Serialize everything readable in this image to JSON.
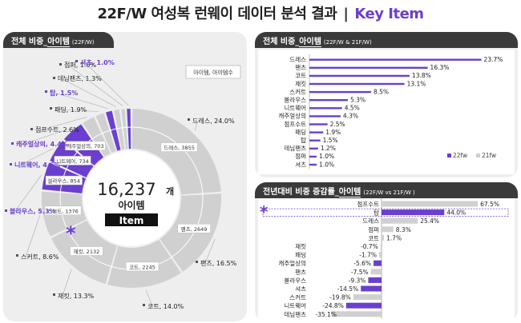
{
  "header": {
    "title_main": "22F/W 여성복 런웨이 데이터 분석 결과",
    "separator": "|",
    "title_accent": "Key Item"
  },
  "panels": {
    "donut": {
      "title_prefix": "전체 비중_",
      "title_emph": "아이템",
      "subtitle": "(22F/W)"
    },
    "share": {
      "title_prefix": "전체 비중_",
      "title_emph": "아이템",
      "subtitle": "(22F/W & 21F/W)"
    },
    "change": {
      "title_prefix": "전년대비 비중 증감률_",
      "title_emph": "아이템",
      "subtitle": "(22F/W vs 21F/W )"
    }
  },
  "colors": {
    "purple": "#6a3fcf",
    "gray": "#d0d0d0",
    "dark": "#3a3a3a",
    "panel_bg": "#eeeeee"
  },
  "icons": [
    "asterisk-icon"
  ],
  "chart_data": [
    {
      "type": "pie",
      "variant": "donut",
      "center_total": "16,237",
      "center_unit": "개",
      "center_label": "아이템",
      "center_badge": "Item",
      "legend_box": "아이템, 아이템수",
      "categories": [
        "드레스",
        "팬츠",
        "코트",
        "재킷",
        "스커트",
        "블라우스",
        "니트웨어",
        "캐주얼상의",
        "점프수트",
        "패딩",
        "탑",
        "데님팬츠",
        "점퍼",
        "셔츠"
      ],
      "values": [
        24.0,
        16.5,
        14.0,
        13.3,
        8.6,
        5.3,
        4.6,
        4.4,
        2.6,
        1.9,
        1.5,
        1.3,
        1.0,
        1.0
      ],
      "outer_labels": [
        "드레스, 24.0%",
        "팬츠, 16.5%",
        "코트, 14.0%",
        "재킷, 13.3%",
        "스커트, 8.6%",
        "블라우스, 5.3%",
        "니트웨어, 4.6%",
        "캐주얼상의, 4.4%",
        "점프수트, 2.6%",
        "패딩, 1.9%",
        "탑, 1.5%",
        "데님팬츠, 1.3%",
        "점퍼, 1.0%",
        "셔츠, 1.0%"
      ],
      "highlighted": [
        "블라우스",
        "니트웨어",
        "캐주얼상의",
        "탑",
        "셔츠"
      ],
      "counts": [
        {
          "category": "드레스",
          "count": 3855
        },
        {
          "category": "팬츠",
          "count": 2649
        },
        {
          "category": "코트",
          "count": 2245
        },
        {
          "category": "재킷",
          "count": 2132
        },
        {
          "category": "스커트",
          "count": 1376
        },
        {
          "category": "블라우스",
          "count": 854
        },
        {
          "category": "니트웨어",
          "count": 734
        },
        {
          "category": "캐주얼상의",
          "count": 703
        }
      ]
    },
    {
      "type": "bar",
      "orientation": "horizontal",
      "categories": [
        "드레스",
        "팬츠",
        "코트",
        "재킷",
        "스커트",
        "블라우스",
        "니트웨어",
        "캐주얼상의",
        "점프수트",
        "패딩",
        "탑",
        "데님팬츠",
        "점퍼",
        "셔츠"
      ],
      "series": [
        {
          "name": "22fw",
          "values": [
            23.7,
            16.3,
            13.8,
            13.1,
            8.5,
            5.3,
            4.5,
            4.3,
            2.5,
            1.9,
            1.5,
            1.2,
            1.0,
            1.0
          ]
        },
        {
          "name": "21fw"
        }
      ],
      "value_labels": [
        "23.7%",
        "16.3%",
        "13.8%",
        "13.1%",
        "8.5%",
        "5.3%",
        "4.5%",
        "4.3%",
        "2.5%",
        "1.9%",
        "1.5%",
        "1.2%",
        "1.0%",
        "1.0%"
      ],
      "xlim": [
        0,
        25
      ],
      "legend_position": "bottom-right"
    },
    {
      "type": "bar",
      "orientation": "horizontal",
      "categories": [
        "점프수트",
        "탑",
        "드레스",
        "점퍼",
        "코트",
        "재킷",
        "패딩",
        "캐주얼상의",
        "팬츠",
        "블라우스",
        "셔츠",
        "스커트",
        "니트웨어",
        "데님팬츠"
      ],
      "values": [
        67.5,
        44.0,
        25.4,
        8.3,
        1.7,
        -0.7,
        -1.7,
        -5.6,
        -7.5,
        -9.3,
        -14.5,
        -19.8,
        -24.8,
        -35.1
      ],
      "value_labels": [
        "67.5%",
        "44.0%",
        "25.4%",
        "8.3%",
        "1.7%",
        "-0.7%",
        "-1.7%",
        "-5.6%",
        "-7.5%",
        "-9.3%",
        "-14.5%",
        "-19.8%",
        "-24.8%",
        "-35.1%"
      ],
      "highlighted": [
        "탑",
        "캐주얼상의",
        "블라우스",
        "셔츠",
        "니트웨어"
      ],
      "boxed": "탑",
      "xlim": [
        -40,
        70
      ]
    }
  ]
}
